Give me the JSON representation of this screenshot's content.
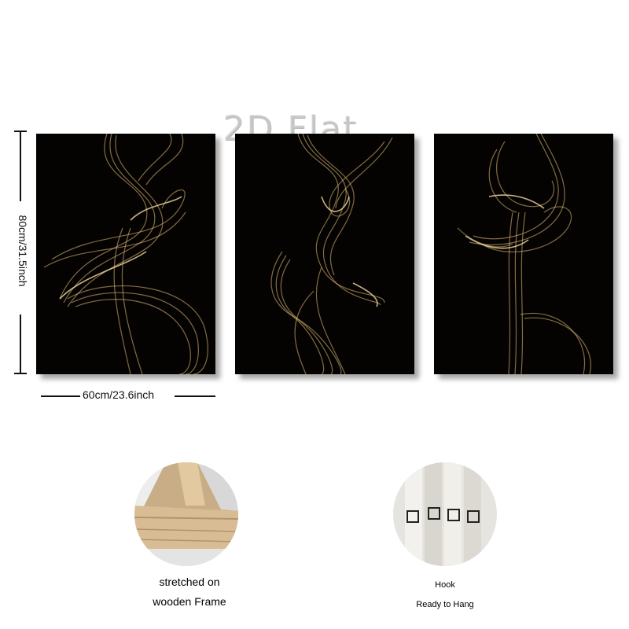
{
  "watermark": "2D Flat",
  "dimensions": {
    "height_label": "80cm/31.5inch",
    "width_label": "60cm/23.6inch"
  },
  "features": {
    "frame_caption_line1": "stretched on",
    "frame_caption_line2": "wooden Frame",
    "hook_caption_line1": "Hook",
    "hook_caption_line2": "Ready to Hang"
  },
  "colors": {
    "panel_background": "#050302",
    "smoke_gold": "#e8c27a"
  }
}
